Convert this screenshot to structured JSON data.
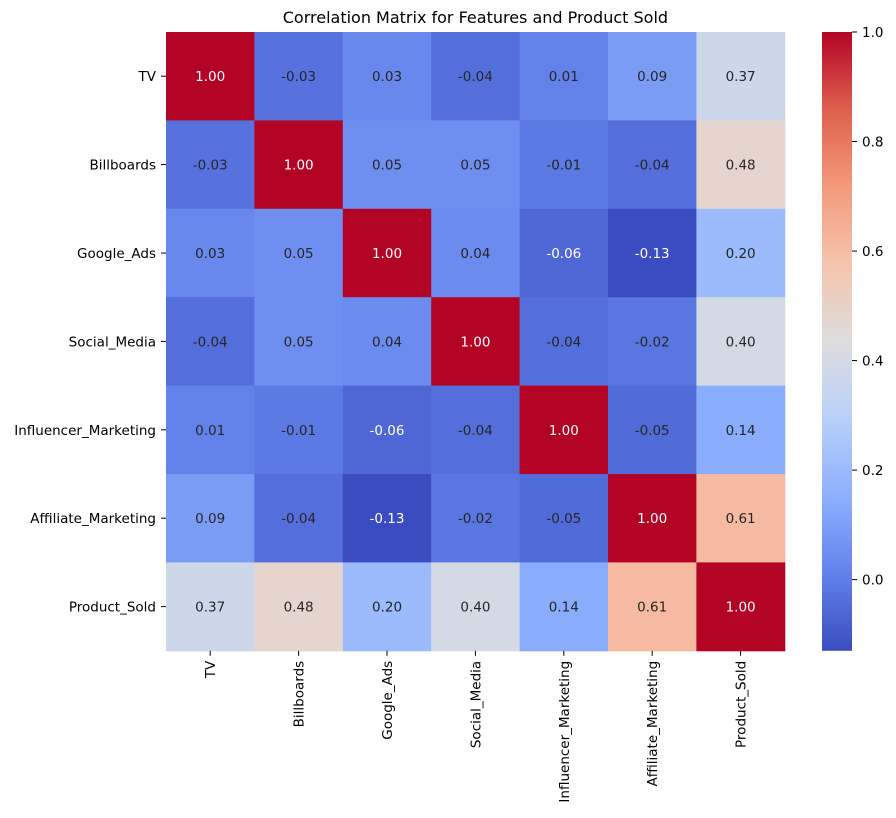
{
  "chart_data": {
    "type": "heatmap",
    "title": "Correlation Matrix for Features and Product Sold",
    "xlabel": "",
    "ylabel": "",
    "row_labels": [
      "TV",
      "Billboards",
      "Google_Ads",
      "Social_Media",
      "Influencer_Marketing",
      "Affiliate_Marketing",
      "Product_Sold"
    ],
    "col_labels": [
      "TV",
      "Billboards",
      "Google_Ads",
      "Social_Media",
      "Influencer_Marketing",
      "Affiliate_Marketing",
      "Product_Sold"
    ],
    "values": [
      [
        1.0,
        -0.03,
        0.03,
        -0.04,
        0.01,
        0.09,
        0.37
      ],
      [
        -0.03,
        1.0,
        0.05,
        0.05,
        -0.01,
        -0.04,
        0.48
      ],
      [
        0.03,
        0.05,
        1.0,
        0.04,
        -0.06,
        -0.13,
        0.2
      ],
      [
        -0.04,
        0.05,
        0.04,
        1.0,
        -0.04,
        -0.02,
        0.4
      ],
      [
        0.01,
        -0.01,
        -0.06,
        -0.04,
        1.0,
        -0.05,
        0.14
      ],
      [
        0.09,
        -0.04,
        -0.13,
        -0.02,
        -0.05,
        1.0,
        0.61
      ],
      [
        0.37,
        0.48,
        0.2,
        0.4,
        0.14,
        0.61,
        1.0
      ]
    ],
    "annotation_format": "0.00",
    "colormap": "coolwarm",
    "color_range": [
      -0.13,
      1.0
    ],
    "colorbar": {
      "ticks": [
        0.0,
        0.2,
        0.4,
        0.6,
        0.8,
        1.0
      ],
      "tick_labels": [
        "0.0",
        "0.2",
        "0.4",
        "0.6",
        "0.8",
        "1.0"
      ],
      "position": "right"
    },
    "grid": false
  }
}
